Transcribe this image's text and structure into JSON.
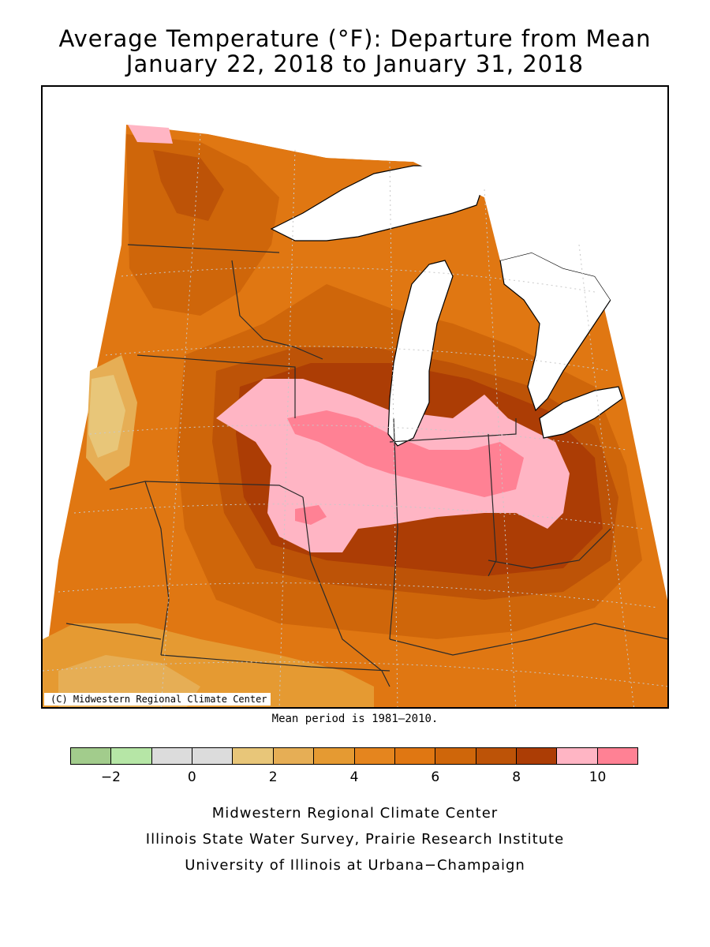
{
  "title": {
    "line1": "Average Temperature (°F): Departure from Mean",
    "line2": "January 22, 2018 to January 31, 2018"
  },
  "map": {
    "copyright": "(C) Midwestern Regional Climate Center",
    "regions_shown": [
      "Minnesota",
      "Iowa",
      "Missouri",
      "Wisconsin",
      "Illinois",
      "Michigan",
      "Indiana",
      "Ohio",
      "Kentucky"
    ],
    "palette": {
      "water": "#ffffff",
      "c_2": "#e8c679",
      "c_3": "#e6ae55",
      "c_4": "#e59a32",
      "c_5": "#e5851e",
      "c_6": "#e07712",
      "c_7": "#cf660a",
      "c_8": "#bd5307",
      "c_9": "#ac3d05",
      "c_10": "#ffb5c4",
      "c_11": "#ff8194"
    },
    "lines": {
      "state_borders": "#2a2a2a",
      "coast": "#000000",
      "grid": "#c8c8c8"
    }
  },
  "mean_note": "Mean period is 1981–2010.",
  "legend": {
    "bins": [
      {
        "from": -3,
        "to": -2,
        "color": "#a2cc8c"
      },
      {
        "from": -2,
        "to": -1,
        "color": "#b6e6a6"
      },
      {
        "from": -1,
        "to": 0,
        "color": "#dcdcdc"
      },
      {
        "from": 0,
        "to": 1,
        "color": "#dcdcdc"
      },
      {
        "from": 1,
        "to": 2,
        "color": "#e8c679"
      },
      {
        "from": 2,
        "to": 3,
        "color": "#e6ae55"
      },
      {
        "from": 3,
        "to": 4,
        "color": "#e59a32"
      },
      {
        "from": 4,
        "to": 5,
        "color": "#e5851e"
      },
      {
        "from": 5,
        "to": 6,
        "color": "#e07712"
      },
      {
        "from": 6,
        "to": 7,
        "color": "#cf660a"
      },
      {
        "from": 7,
        "to": 8,
        "color": "#bd5307"
      },
      {
        "from": 8,
        "to": 9,
        "color": "#ac3d05"
      },
      {
        "from": 9,
        "to": 10,
        "color": "#ffb5c4"
      },
      {
        "from": 10,
        "to": 11,
        "color": "#ff8194"
      }
    ],
    "tick_labels": [
      "−2",
      "0",
      "2",
      "4",
      "6",
      "8",
      "10"
    ],
    "tick_values": [
      -2,
      0,
      2,
      4,
      6,
      8,
      10
    ],
    "range": [
      -3,
      11
    ]
  },
  "footer": {
    "line1": "Midwestern Regional Climate Center",
    "line2": "Illinois State Water Survey, Prairie Research Institute",
    "line3": "University of Illinois at Urbana−Champaign"
  }
}
